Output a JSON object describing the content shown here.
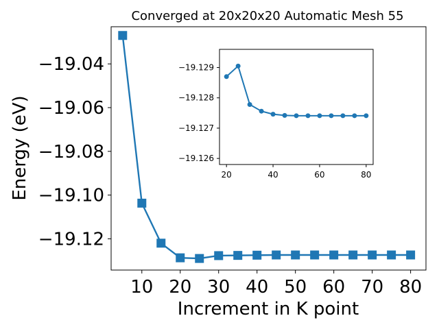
{
  "colors": {
    "series": "#1f77b4",
    "axes": "#000000",
    "background": "#ffffff"
  },
  "chart_data": [
    {
      "type": "line",
      "title": "Converged at 20x20x20 Automatic Mesh 55",
      "xlabel": "Increment in K point",
      "ylabel": "Energy (eV)",
      "marker": "square",
      "grid": false,
      "xlim": [
        2,
        84
      ],
      "ylim": [
        -19.1343,
        -19.023
      ],
      "xticks": [
        10,
        20,
        30,
        40,
        50,
        60,
        70,
        80
      ],
      "yticks": [
        -19.04,
        -19.06,
        -19.08,
        -19.1,
        -19.12
      ],
      "ytick_labels": [
        "−19.04",
        "−19.06",
        "−19.08",
        "−19.10",
        "−19.12"
      ],
      "series": [
        {
          "x": [
            5,
            10,
            15,
            20,
            25,
            30,
            35,
            40,
            45,
            50,
            55,
            60,
            65,
            70,
            75,
            80
          ],
          "y": [
            -19.027,
            -19.1037,
            -19.122,
            -19.1287,
            -19.129,
            -19.1277,
            -19.1276,
            -19.1275,
            -19.1274,
            -19.1274,
            -19.1274,
            -19.1274,
            -19.1274,
            -19.1274,
            -19.1274,
            -19.1274
          ]
        }
      ]
    },
    {
      "type": "line",
      "marker": "circle",
      "grid": false,
      "inverted_y": true,
      "xlim": [
        17,
        83
      ],
      "ylim": [
        -19.1258,
        -19.1296
      ],
      "xticks": [
        20,
        40,
        60,
        80
      ],
      "yticks": [
        -19.129,
        -19.128,
        -19.127,
        -19.126
      ],
      "ytick_labels": [
        "−19.129",
        "−19.128",
        "−19.127",
        "−19.126"
      ],
      "series": [
        {
          "x": [
            20,
            25,
            30,
            35,
            40,
            45,
            50,
            55,
            60,
            65,
            70,
            75,
            80
          ],
          "y": [
            -19.1287,
            -19.12905,
            -19.12778,
            -19.12756,
            -19.12746,
            -19.12742,
            -19.12741,
            -19.12741,
            -19.12741,
            -19.12741,
            -19.12741,
            -19.12741,
            -19.12741
          ]
        }
      ]
    }
  ]
}
